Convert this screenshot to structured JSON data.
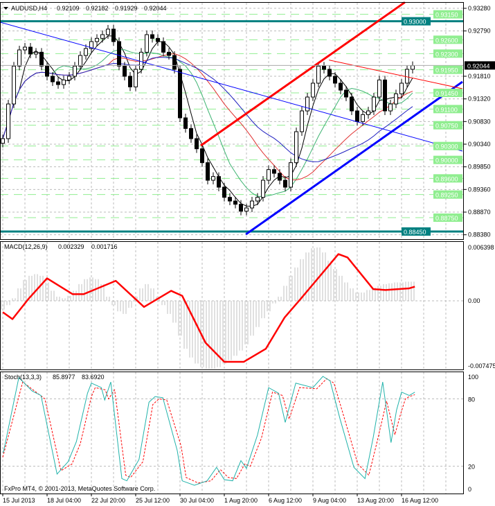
{
  "header": {
    "symbol": "AUDUSD,H4",
    "open": "0.92109",
    "high": "0.92182",
    "low": "0.91929",
    "close": "0.92044"
  },
  "macd_header": {
    "name": "MACD(12,26,9)",
    "main": "0.002329",
    "signal": "0.001716"
  },
  "stoch_header": {
    "name": "Stoch(13,3,3)",
    "k": "85.8977",
    "d": "83.6920"
  },
  "copyright": "FxPro MT4, © 2001-2013, MetaQuotes Software Corp.",
  "colors": {
    "level": "#90ee90",
    "key_level": "#008080",
    "channel": "#ff0000",
    "support": "#0000ff",
    "signal": "#ff0000",
    "histogram": "#c0c0c0",
    "stoch_k": "#20b2aa",
    "stoch_d": "#ff0000"
  },
  "chart_data": [
    {
      "type": "candlestick",
      "title": "AUDUSD,H4",
      "ylim": [
        0.8838,
        0.9341
      ],
      "yticks": [
        "0.93280",
        "0.92790",
        "0.91810",
        "0.91320",
        "0.90830",
        "0.90340",
        "0.89850",
        "0.89360",
        "0.88870",
        "0.88380"
      ],
      "xticks": [
        "15 Jul 2013",
        "18 Jul 04:00",
        "22 Jul 20:00",
        "25 Jul 12:00",
        "30 Jul 04:00",
        "1 Aug 20:00",
        "6 Aug 12:00",
        "9 Aug 04:00",
        "13 Aug 20:00",
        "16 Aug 12:00"
      ],
      "closes": [
        0.9046,
        0.9121,
        0.9203,
        0.9238,
        0.9244,
        0.9229,
        0.9233,
        0.9203,
        0.9181,
        0.9169,
        0.9163,
        0.9173,
        0.9181,
        0.9203,
        0.9226,
        0.9241,
        0.9256,
        0.9263,
        0.9271,
        0.9283,
        0.9256,
        0.9203,
        0.9181,
        0.9158,
        0.9196,
        0.9233,
        0.9271,
        0.9263,
        0.9256,
        0.9233,
        0.9226,
        0.9196,
        0.9091,
        0.9068,
        0.9046,
        0.9024,
        0.8994,
        0.8956,
        0.8964,
        0.8941,
        0.8919,
        0.8911,
        0.8904,
        0.8889,
        0.8896,
        0.8911,
        0.8919,
        0.8956,
        0.8979,
        0.8971,
        0.8956,
        0.8941,
        0.8994,
        0.9061,
        0.9106,
        0.9136,
        0.9166,
        0.9203,
        0.9196,
        0.9181,
        0.9166,
        0.9151,
        0.9136,
        0.9106,
        0.9083,
        0.9098,
        0.9106,
        0.9136,
        0.9173,
        0.9106,
        0.9121,
        0.9143,
        0.9166,
        0.9196,
        0.9204
      ],
      "levels": [
        "0.93150",
        "0.92600",
        "0.92300",
        "0.91950",
        "0.91450",
        "0.91100",
        "0.90750",
        "0.90300",
        "0.90000",
        "0.89600",
        "0.89250",
        "0.88750"
      ],
      "key_levels": [
        "0.93000",
        "0.88450"
      ],
      "current_price": "0.92044",
      "trendlines": [
        {
          "color": "#ff0000",
          "width": 3,
          "from": [
            35.75,
            0.9031
          ],
          "to": [
            72.6,
            0.9341
          ]
        },
        {
          "color": "#0000ff",
          "width": 3,
          "from": [
            43.9,
            0.8839
          ],
          "to": [
            83,
            0.9169
          ]
        },
        {
          "color": "#ff0000",
          "width": 1,
          "from": [
            58.9,
            0.9216
          ],
          "to": [
            83,
            0.9154
          ]
        },
        {
          "color": "#0000ff",
          "width": 1,
          "from": [
            -0.5,
            0.9298
          ],
          "to": [
            83,
            0.9019
          ]
        }
      ],
      "grid": true
    },
    {
      "type": "bar+line",
      "title": "MACD(12,26,9)",
      "ylim": [
        -0.007475,
        0.006398
      ],
      "yticks": [
        "0.006398",
        "0.00",
        "-0.007475"
      ],
      "histogram": [
        -0.001,
        -0.0005,
        0.0003,
        0.0015,
        0.0025,
        0.003,
        0.0032,
        0.003,
        0.0022,
        0.0012,
        0.0005,
        0.0003,
        0.0006,
        0.0012,
        0.002,
        0.0026,
        0.0028,
        0.0026,
        0.002,
        0.0005,
        -0.0005,
        -0.0012,
        -0.0015,
        -0.0008,
        0.0005,
        0.0015,
        0.002,
        0.0015,
        0.0005,
        -0.0005,
        -0.0015,
        -0.0025,
        -0.004,
        -0.0055,
        -0.0065,
        -0.0072,
        -0.0076,
        -0.0078,
        -0.0078,
        -0.0076,
        -0.0072,
        -0.0068,
        -0.0063,
        -0.0057,
        -0.005,
        -0.004,
        -0.003,
        -0.002,
        -0.0012,
        -0.0003,
        0.0005,
        0.0018,
        0.003,
        0.004,
        0.005,
        0.0058,
        0.0063,
        0.0064,
        0.0058,
        0.0048,
        0.0038,
        0.003,
        0.0022,
        0.0015,
        0.001,
        0.001,
        0.0013,
        0.0016,
        0.0018,
        0.002,
        0.0021,
        0.0022,
        0.0022,
        0.0023,
        0.0023
      ],
      "signal": [
        [
          0,
          -0.0013
        ],
        [
          1.75,
          -0.0021
        ],
        [
          4.6,
          0.0002
        ],
        [
          8,
          0.0027
        ],
        [
          12.6,
          0.0008
        ],
        [
          14.6,
          0.0008
        ],
        [
          20.4,
          0.0024
        ],
        [
          25.5,
          -0.0007
        ],
        [
          30.4,
          0.0012
        ],
        [
          32.4,
          0.0006
        ],
        [
          36.6,
          -0.0048
        ],
        [
          40,
          -0.007
        ],
        [
          43.5,
          -0.007
        ],
        [
          47.5,
          -0.0055
        ],
        [
          50.9,
          -0.0019
        ],
        [
          53.75,
          0.0002
        ],
        [
          60.6,
          0.0056
        ],
        [
          62.25,
          0.0052
        ],
        [
          66.9,
          0.0014
        ],
        [
          69.1,
          0.0013
        ],
        [
          73.4,
          0.0015
        ],
        [
          74.4,
          0.0017
        ]
      ]
    },
    {
      "type": "line",
      "title": "Stoch(13,3,3)",
      "ylim": [
        0,
        100
      ],
      "yticks": [
        "100",
        "80",
        "20",
        "0"
      ],
      "series": [
        {
          "name": "%K",
          "points": [
            [
              0.1,
              32
            ],
            [
              2.9,
              99
            ],
            [
              5.3,
              87
            ],
            [
              6.9,
              83
            ],
            [
              9.8,
              13
            ],
            [
              11.8,
              24
            ],
            [
              13.3,
              42
            ],
            [
              15.3,
              85
            ],
            [
              16,
              94
            ],
            [
              17.8,
              90
            ],
            [
              18.4,
              79
            ],
            [
              19.5,
              95
            ],
            [
              21.5,
              9
            ],
            [
              22.4,
              7
            ],
            [
              24.6,
              26
            ],
            [
              26.4,
              77
            ],
            [
              27.5,
              82
            ],
            [
              28.9,
              81
            ],
            [
              31.5,
              34
            ],
            [
              32.4,
              7
            ],
            [
              34.6,
              3
            ],
            [
              36.9,
              7
            ],
            [
              38.6,
              19
            ],
            [
              40,
              8
            ],
            [
              41.5,
              7
            ],
            [
              43,
              25
            ],
            [
              44,
              18
            ],
            [
              46,
              48
            ],
            [
              48,
              90
            ],
            [
              49.8,
              85
            ],
            [
              51,
              59
            ],
            [
              52.9,
              94
            ],
            [
              56,
              90
            ],
            [
              57.8,
              100
            ],
            [
              59.1,
              96
            ],
            [
              60.9,
              62
            ],
            [
              63.4,
              19
            ],
            [
              65.4,
              9
            ],
            [
              66.9,
              46
            ],
            [
              68.6,
              95
            ],
            [
              70.1,
              41
            ],
            [
              71.1,
              70
            ],
            [
              72,
              86
            ],
            [
              73.4,
              83
            ],
            [
              74.4,
              85.9
            ]
          ]
        },
        {
          "name": "%D",
          "points": [
            [
              0,
              28
            ],
            [
              3.6,
              95
            ],
            [
              6,
              86
            ],
            [
              7.6,
              80
            ],
            [
              10.5,
              16
            ],
            [
              12.5,
              22
            ],
            [
              14,
              40
            ],
            [
              16,
              82
            ],
            [
              16.7,
              90
            ],
            [
              18.5,
              88
            ],
            [
              19.1,
              80
            ],
            [
              20.2,
              88
            ],
            [
              22.2,
              12
            ],
            [
              23.1,
              10
            ],
            [
              25.3,
              24
            ],
            [
              27.1,
              75
            ],
            [
              28.2,
              80
            ],
            [
              29.6,
              79
            ],
            [
              32.2,
              38
            ],
            [
              33.1,
              10
            ],
            [
              35.3,
              5
            ],
            [
              37.6,
              7
            ],
            [
              39.3,
              17
            ],
            [
              40.7,
              10
            ],
            [
              42.2,
              9
            ],
            [
              43.7,
              22
            ],
            [
              44.7,
              20
            ],
            [
              46.7,
              45
            ],
            [
              48.7,
              86
            ],
            [
              50.5,
              83
            ],
            [
              51.7,
              62
            ],
            [
              53.6,
              90
            ],
            [
              56.7,
              89
            ],
            [
              58.5,
              98
            ],
            [
              59.8,
              94
            ],
            [
              61.6,
              64
            ],
            [
              64.1,
              22
            ],
            [
              66.1,
              12
            ],
            [
              67.6,
              42
            ],
            [
              69.3,
              78
            ],
            [
              70.8,
              48
            ],
            [
              71.8,
              66
            ],
            [
              72.7,
              80
            ],
            [
              73.4,
              82
            ],
            [
              74.4,
              83.69
            ]
          ]
        }
      ],
      "levels": [
        80,
        20
      ]
    }
  ]
}
